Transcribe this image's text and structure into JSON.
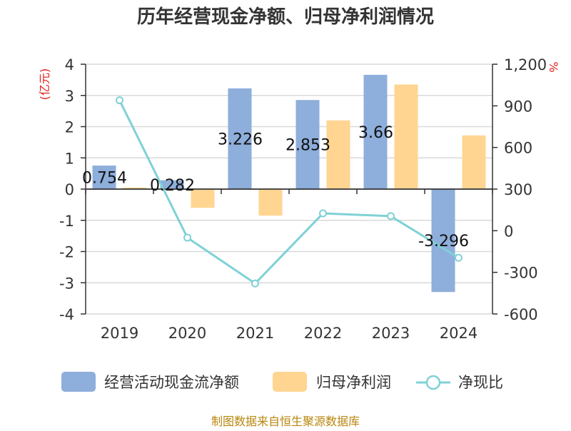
{
  "chart_data": {
    "type": "bar+line",
    "title": "历年经营现金净额、归母净利润情况",
    "categories": [
      "2019",
      "2020",
      "2021",
      "2022",
      "2023",
      "2024"
    ],
    "series": [
      {
        "name": "经营活动现金流净额",
        "type": "bar",
        "axis": "left",
        "color": "#8eaedb",
        "values": [
          0.754,
          0.282,
          3.226,
          2.853,
          3.66,
          -3.296
        ]
      },
      {
        "name": "归母净利润",
        "type": "bar",
        "axis": "left",
        "color": "#ffd591",
        "values": [
          0.05,
          -0.6,
          -0.85,
          2.2,
          3.35,
          1.72
        ]
      },
      {
        "name": "净现比",
        "type": "line",
        "axis": "right",
        "color": "#7fd1d6",
        "values": [
          940,
          -50,
          -380,
          125,
          105,
          -195
        ]
      }
    ],
    "data_labels": [
      "0.754",
      "0.282",
      "3.226",
      "2.853",
      "3.66",
      "-3.296"
    ],
    "y_left": {
      "unit": "(亿元)",
      "min": -4,
      "max": 4,
      "ticks": [
        "4",
        "3",
        "2",
        "1",
        "0",
        "-1",
        "-2",
        "-3",
        "-4"
      ]
    },
    "y_right": {
      "unit": "%",
      "min": -600,
      "max": 1200,
      "ticks": [
        "1,200",
        "900",
        "600",
        "300",
        "0",
        "-300",
        "-600"
      ]
    },
    "legend": [
      "经营活动现金流净额",
      "归母净利润",
      "净现比"
    ],
    "legend_position": "bottom",
    "source": "制图数据来自恒生聚源数据库"
  }
}
